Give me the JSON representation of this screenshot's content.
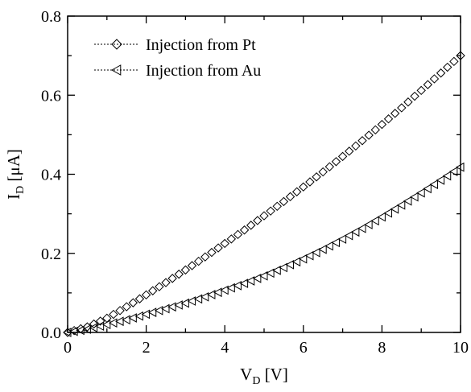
{
  "chart_data": {
    "type": "scatter",
    "xlabel": "V",
    "xlabel_sub": "D",
    "xlabel_unit": "[V]",
    "ylabel": "I",
    "ylabel_sub": "D",
    "ylabel_unit": "[μA]",
    "xlim": [
      0,
      10
    ],
    "ylim": [
      0,
      0.8
    ],
    "xticks": [
      "0",
      "2",
      "4",
      "6",
      "8",
      "10"
    ],
    "yticks": [
      "0.0",
      "0.2",
      "0.4",
      "0.6",
      "0.8"
    ],
    "grid": false,
    "legend_position": "top-left",
    "series": [
      {
        "name": "Injection from Pt",
        "marker": "diamond",
        "x": [
          0,
          0.5,
          1,
          1.5,
          2,
          2.5,
          3,
          3.5,
          4,
          4.5,
          5,
          5.5,
          6,
          6.5,
          7,
          7.5,
          8,
          8.5,
          9,
          9.5,
          10
        ],
        "y": [
          0.0,
          0.014,
          0.036,
          0.065,
          0.095,
          0.126,
          0.158,
          0.191,
          0.225,
          0.259,
          0.295,
          0.331,
          0.368,
          0.406,
          0.445,
          0.485,
          0.526,
          0.568,
          0.612,
          0.656,
          0.7
        ]
      },
      {
        "name": "Injection from Au",
        "marker": "triangle-left",
        "x": [
          0,
          0.5,
          1,
          1.5,
          2,
          2.5,
          3,
          3.5,
          4,
          4.5,
          5,
          5.5,
          6,
          6.5,
          7,
          7.5,
          8,
          8.5,
          9,
          9.5,
          10
        ],
        "y": [
          0.0,
          0.008,
          0.02,
          0.032,
          0.046,
          0.06,
          0.074,
          0.09,
          0.107,
          0.124,
          0.143,
          0.164,
          0.186,
          0.21,
          0.236,
          0.263,
          0.292,
          0.322,
          0.353,
          0.385,
          0.418
        ]
      }
    ]
  }
}
